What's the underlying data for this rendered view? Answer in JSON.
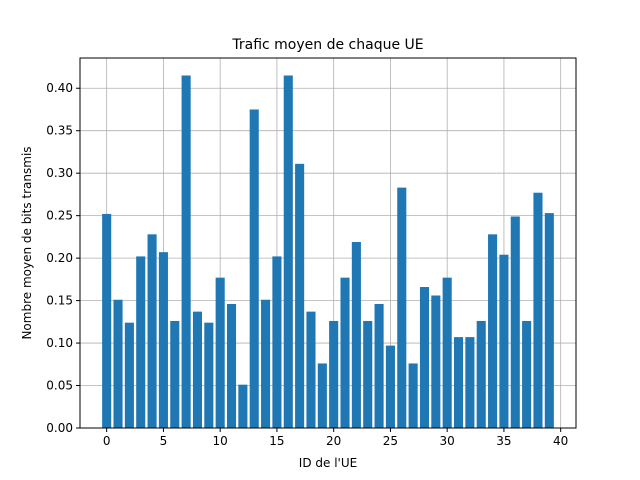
{
  "chart_data": {
    "type": "bar",
    "title": "Trafic moyen de chaque UE",
    "xlabel": "ID de l'UE",
    "ylabel": "Nombre moyen de bits transmis",
    "x": [
      0,
      1,
      2,
      3,
      4,
      5,
      6,
      7,
      8,
      9,
      10,
      11,
      12,
      13,
      14,
      15,
      16,
      17,
      18,
      19,
      20,
      21,
      22,
      23,
      24,
      25,
      26,
      27,
      28,
      29,
      30,
      31,
      32,
      33,
      34,
      35,
      36,
      37,
      38,
      39
    ],
    "values": [
      0.252,
      0.151,
      0.124,
      0.202,
      0.228,
      0.207,
      0.126,
      0.415,
      0.137,
      0.124,
      0.177,
      0.146,
      0.051,
      0.375,
      0.151,
      0.202,
      0.415,
      0.311,
      0.137,
      0.076,
      0.126,
      0.177,
      0.219,
      0.126,
      0.146,
      0.097,
      0.283,
      0.076,
      0.166,
      0.156,
      0.177,
      0.107,
      0.107,
      0.126,
      0.228,
      0.204,
      0.249,
      0.126,
      0.277,
      0.253
    ],
    "xlim": [
      -2.35,
      41.35
    ],
    "ylim": [
      0,
      0.4356
    ],
    "xticks": [
      0,
      5,
      10,
      15,
      20,
      25,
      30,
      35,
      40
    ],
    "xtick_labels": [
      "0",
      "5",
      "10",
      "15",
      "20",
      "25",
      "30",
      "35",
      "40"
    ],
    "yticks": [
      0,
      0.05,
      0.1,
      0.15,
      0.2,
      0.25,
      0.3,
      0.35,
      0.4
    ],
    "ytick_labels": [
      "0.00",
      "0.05",
      "0.10",
      "0.15",
      "0.20",
      "0.25",
      "0.30",
      "0.35",
      "0.40"
    ],
    "grid": true,
    "bar_color": "#1f77b4",
    "grid_color": "#b0b0b0"
  }
}
